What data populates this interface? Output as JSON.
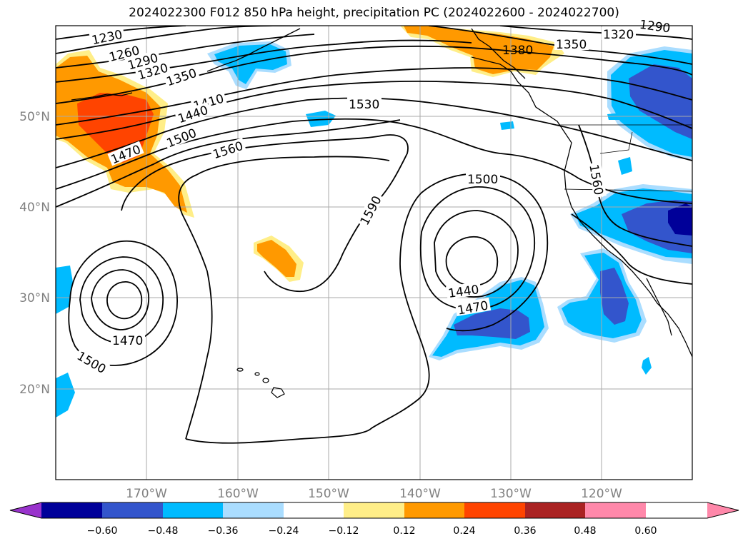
{
  "title": "2024022300 F012 850 hPa height, precipitation PC (2024022600 - 2024022700)",
  "lat_labels": [
    "50°N",
    "40°N",
    "30°N",
    "20°N"
  ],
  "lon_labels": [
    "170°W",
    "160°W",
    "150°W",
    "140°W",
    "130°W",
    "120°W"
  ],
  "contour_labels": [
    "1230",
    "1260",
    "1290",
    "1320",
    "1350",
    "1410",
    "1440",
    "1500",
    "1470",
    "1560",
    "1530",
    "1590",
    "1500",
    "1440",
    "1470",
    "1470",
    "1500",
    "1380",
    "1350",
    "1320",
    "1290",
    "1560"
  ],
  "colorbar": {
    "ticks": [
      "−0.60",
      "−0.48",
      "−0.36",
      "−0.24",
      "−0.12",
      "0.12",
      "0.24",
      "0.36",
      "0.48",
      "0.60"
    ],
    "colors": [
      "#9933cc",
      "#000099",
      "#3355cc",
      "#00bbff",
      "#aaddff",
      "#ffffff",
      "#ffee88",
      "#ff9900",
      "#ff4400",
      "#aa2222",
      "#ff88aa"
    ]
  },
  "palette": {
    "neg_light": "#aaddff",
    "neg_mid": "#00bbff",
    "neg_strong": "#3355cc",
    "neg_max": "#000099",
    "pos_light": "#ffee88",
    "pos_mid": "#ff9900",
    "pos_strong": "#ff4400"
  }
}
